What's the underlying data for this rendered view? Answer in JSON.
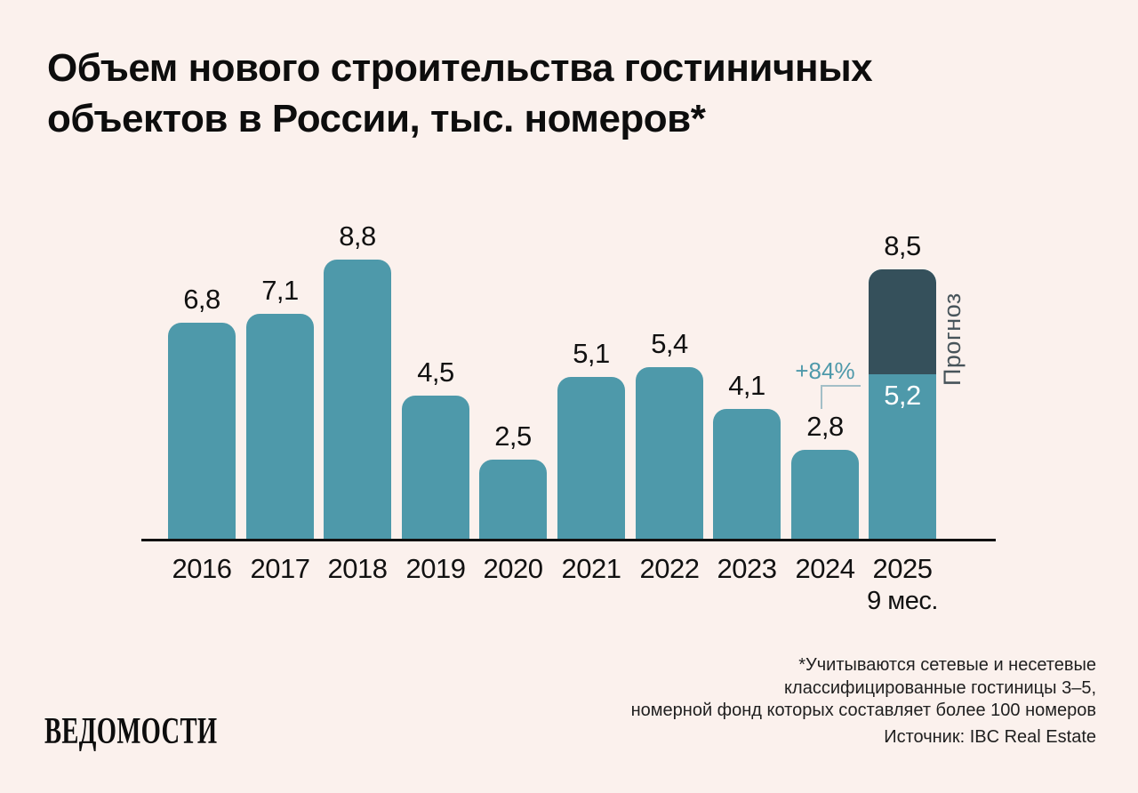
{
  "page": {
    "background_color": "#FBF1ED"
  },
  "title": {
    "line1": "Объем нового строительства гостиничных",
    "line2": "объектов в России, тыс. номеров*"
  },
  "chart_data": {
    "type": "bar",
    "title": "Объем нового строительства гостиничных объектов в России, тыс. номеров",
    "unit": "тыс. номеров",
    "ylim": [
      0,
      9
    ],
    "grid": false,
    "legend": "none",
    "categories": [
      "2016",
      "2017",
      "2018",
      "2019",
      "2020",
      "2021",
      "2022",
      "2023",
      "2024",
      "2025"
    ],
    "values": [
      6.8,
      7.1,
      8.8,
      4.5,
      2.5,
      5.1,
      5.4,
      4.1,
      2.8,
      8.5
    ],
    "bars": [
      {
        "category": "2016",
        "value": 6.8,
        "label": "6,8"
      },
      {
        "category": "2017",
        "value": 7.1,
        "label": "7,1"
      },
      {
        "category": "2018",
        "value": 8.8,
        "label": "8,8"
      },
      {
        "category": "2019",
        "value": 4.5,
        "label": "4,5"
      },
      {
        "category": "2020",
        "value": 2.5,
        "label": "2,5"
      },
      {
        "category": "2021",
        "value": 5.1,
        "label": "5,1"
      },
      {
        "category": "2022",
        "value": 5.4,
        "label": "5,4"
      },
      {
        "category": "2023",
        "value": 4.1,
        "label": "4,1"
      },
      {
        "category": "2024",
        "value": 2.8,
        "label": "2,8"
      },
      {
        "category": "2025",
        "category_sub": "9 мес.",
        "value": 8.5,
        "label": "8,5",
        "stacked": true,
        "actual_value": 5.2,
        "actual_label": "5,2",
        "forecast_value": 3.3
      }
    ],
    "annotation": {
      "text": "+84%",
      "applies_to": "рост 2024 → 2025 (9 мес.)"
    },
    "forecast_caption": "Прогноз",
    "colors": {
      "bar": "#4E99AA",
      "forecast_segment": "#35505B",
      "annotation_text": "#4E99AA",
      "bracket_line": "#A3BFC7",
      "axis_line": "#111111",
      "value_label": "#111111",
      "inside_label": "#FFFFFF",
      "forecast_caption_text": "#47545A"
    }
  },
  "footer": {
    "note_lines": [
      "*Учитываются сетевые и несетевые",
      "классифицированные гостиницы 3–5,",
      "номерной фонд которых составляет более 100 номеров"
    ],
    "source": "Источник: IBC Real Estate",
    "logo": "ВЕДОМОСТИ"
  }
}
